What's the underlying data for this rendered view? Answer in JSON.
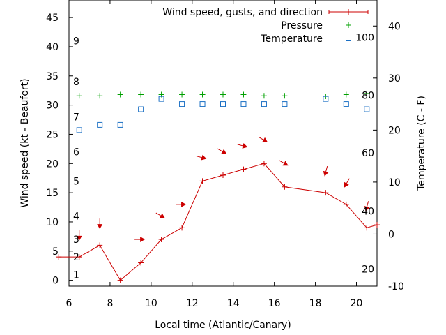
{
  "chart_data": {
    "type": "line",
    "xlabel": "Local time (Atlantic/Canary)",
    "ylabel": "Wind speed (kt - Beaufort)",
    "y2label": "Temperature (C - F)",
    "xlim": [
      6,
      21
    ],
    "ylim": [
      -1,
      48
    ],
    "y2lim": [
      -10,
      45
    ],
    "x_ticks": [
      6,
      8,
      10,
      12,
      14,
      16,
      18,
      20
    ],
    "y_ticks": [
      0,
      5,
      10,
      15,
      20,
      25,
      30,
      35,
      40,
      45
    ],
    "y2_ticks": [
      -10,
      0,
      10,
      20,
      30,
      40
    ],
    "beaufort_labels": [
      {
        "label": "1",
        "kt": 1
      },
      {
        "label": "2",
        "kt": 4
      },
      {
        "label": "3",
        "kt": 7
      },
      {
        "label": "4",
        "kt": 11
      },
      {
        "label": "5",
        "kt": 17
      },
      {
        "label": "6",
        "kt": 22
      },
      {
        "label": "7",
        "kt": 28
      },
      {
        "label": "8",
        "kt": 34
      },
      {
        "label": "9",
        "kt": 41
      }
    ],
    "fahrenheit_labels": [
      {
        "label": "20",
        "celsius": -6.7
      },
      {
        "label": "40",
        "celsius": 4.4
      },
      {
        "label": "60",
        "celsius": 15.6
      },
      {
        "label": "80",
        "celsius": 26.7
      },
      {
        "label": "100",
        "celsius": 37.8
      }
    ],
    "legend": {
      "position": "top-right",
      "entries": [
        "Wind speed, gusts, and direction",
        "Pressure",
        "Temperature"
      ]
    },
    "series": [
      {
        "name": "Wind speed, gusts, and direction",
        "color": "#cc0000",
        "x": [
          5.5,
          6.5,
          7.5,
          8.5,
          9.5,
          10.5,
          11.5,
          12.5,
          13.5,
          14.5,
          15.5,
          16.5,
          18.5,
          19.5,
          20.5,
          21
        ],
        "y": [
          4,
          4,
          6,
          0,
          3,
          7,
          9,
          17,
          18,
          19,
          20,
          16,
          15,
          13,
          9,
          9.5
        ]
      },
      {
        "name": "Pressure",
        "color": "#00a000",
        "x": [
          6.5,
          7.5,
          8.5,
          9.5,
          10.5,
          11.5,
          12.5,
          13.5,
          14.5,
          15.5,
          16.5,
          18.5,
          19.5,
          20.5
        ],
        "y": [
          31.6,
          31.6,
          31.8,
          31.8,
          31.8,
          31.8,
          31.8,
          31.8,
          31.8,
          31.6,
          31.6,
          31.5,
          31.8,
          32
        ]
      },
      {
        "name": "Temperature",
        "color": "#1a6fc4",
        "x": [
          6.5,
          7.5,
          8.5,
          9.5,
          10.5,
          11.5,
          12.5,
          13.5,
          14.5,
          15.5,
          16.5,
          18.5,
          19.5,
          20.5
        ],
        "y": [
          20,
          21,
          21,
          24,
          26,
          25,
          25,
          25,
          25,
          25,
          25,
          26,
          25,
          24
        ]
      }
    ],
    "wind_direction_arrows": [
      {
        "x": 6.5,
        "y": 7.5,
        "from_deg": 0
      },
      {
        "x": 7.5,
        "y": 9.5,
        "from_deg": 0
      },
      {
        "x": 9.5,
        "y": 7,
        "from_deg": 270
      },
      {
        "x": 10.5,
        "y": 11,
        "from_deg": 300
      },
      {
        "x": 11.5,
        "y": 13,
        "from_deg": 270
      },
      {
        "x": 12.5,
        "y": 21,
        "from_deg": 285
      },
      {
        "x": 13.5,
        "y": 22,
        "from_deg": 300
      },
      {
        "x": 14.5,
        "y": 23,
        "from_deg": 285
      },
      {
        "x": 15.5,
        "y": 24,
        "from_deg": 300
      },
      {
        "x": 16.5,
        "y": 20,
        "from_deg": 300
      },
      {
        "x": 18.5,
        "y": 18.5,
        "from_deg": 15
      },
      {
        "x": 19.5,
        "y": 16.5,
        "from_deg": 30
      },
      {
        "x": 20.5,
        "y": 12.5,
        "from_deg": 15
      }
    ]
  }
}
